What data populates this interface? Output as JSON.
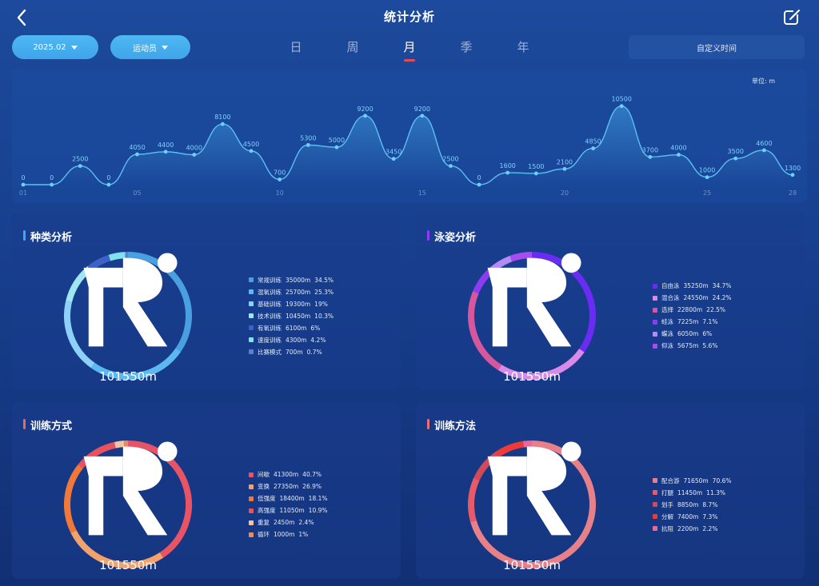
{
  "header": {
    "title": "统计分析"
  },
  "filters": {
    "date_label": "2025.02",
    "athlete_label": "运动员",
    "custom_time": "自定义时间"
  },
  "tabs": [
    {
      "label": "日",
      "active": false
    },
    {
      "label": "周",
      "active": false
    },
    {
      "label": "月",
      "active": true
    },
    {
      "label": "季",
      "active": false
    },
    {
      "label": "年",
      "active": false
    }
  ],
  "chart_data": [
    {
      "type": "line",
      "unit_label": "单位: m",
      "x": [
        1,
        2,
        3,
        4,
        5,
        6,
        7,
        8,
        9,
        10,
        11,
        12,
        13,
        14,
        15,
        16,
        17,
        18,
        19,
        20,
        21,
        22,
        23,
        24,
        25,
        26,
        27,
        28
      ],
      "x_tick_labels": [
        "01",
        "05",
        "10",
        "15",
        "20",
        "25",
        "28"
      ],
      "x_tick_values": [
        1,
        5,
        10,
        15,
        20,
        25,
        28
      ],
      "values": [
        0,
        0,
        2500,
        0,
        4050,
        4400,
        4000,
        8100,
        4500,
        700,
        5300,
        5000,
        9200,
        3450,
        9200,
        2500,
        0,
        1600,
        1500,
        2100,
        4850,
        10500,
        3700,
        4000,
        1000,
        3500,
        4600,
        1300
      ],
      "ylim": [
        0,
        11000
      ],
      "colors": {
        "line": "#5cc0f5",
        "point": "#6fd0ff",
        "label": "#7fd2ff"
      }
    },
    {
      "type": "pie",
      "title": "种类分析",
      "total": "101550m",
      "accent": "#3fa6f0",
      "slices": [
        {
          "name": "常规训练",
          "value": "35000m",
          "percent": "34.5%",
          "share": 34.5,
          "color": "#4a9fe0"
        },
        {
          "name": "混氧训练",
          "value": "25700m",
          "percent": "25.3%",
          "share": 25.3,
          "color": "#5cb8f0"
        },
        {
          "name": "基础训练",
          "value": "19300m",
          "percent": "19%",
          "share": 19,
          "color": "#8dd0fa"
        },
        {
          "name": "技术训练",
          "value": "10450m",
          "percent": "10.3%",
          "share": 10.3,
          "color": "#9fe6f2"
        },
        {
          "name": "有氧训练",
          "value": "6100m",
          "percent": "6%",
          "share": 6,
          "color": "#3c62c8"
        },
        {
          "name": "速度训练",
          "value": "4300m",
          "percent": "4.2%",
          "share": 4.2,
          "color": "#7fe3ee"
        },
        {
          "name": "比赛模式",
          "value": "700m",
          "percent": "0.7%",
          "share": 0.7,
          "color": "#5a7fd8"
        }
      ]
    },
    {
      "type": "pie",
      "title": "泳姿分析",
      "total": "101550m",
      "accent": "#8a3cff",
      "slices": [
        {
          "name": "自由泳",
          "value": "35250m",
          "percent": "34.7%",
          "share": 34.7,
          "color": "#6a2cf2"
        },
        {
          "name": "混合泳",
          "value": "24550m",
          "percent": "24.2%",
          "share": 24.2,
          "color": "#d98ae8"
        },
        {
          "name": "选择",
          "value": "22800m",
          "percent": "22.5%",
          "share": 22.5,
          "color": "#d6579e"
        },
        {
          "name": "蛙泳",
          "value": "7225m",
          "percent": "7.1%",
          "share": 7.1,
          "color": "#8f3cf0"
        },
        {
          "name": "蝶泳",
          "value": "6050m",
          "percent": "6%",
          "share": 6,
          "color": "#b48bf5"
        },
        {
          "name": "仰泳",
          "value": "5675m",
          "percent": "5.6%",
          "share": 5.6,
          "color": "#a64cf0"
        }
      ]
    },
    {
      "type": "pie",
      "title": "训练方式",
      "total": "101550m",
      "accent": "#e86a5a",
      "slices": [
        {
          "name": "间歇",
          "value": "41300m",
          "percent": "40.7%",
          "share": 40.7,
          "color": "#e85466"
        },
        {
          "name": "变换",
          "value": "27350m",
          "percent": "26.9%",
          "share": 26.9,
          "color": "#f2a26a"
        },
        {
          "name": "低强度",
          "value": "18400m",
          "percent": "18.1%",
          "share": 18.1,
          "color": "#f0783a"
        },
        {
          "name": "高强度",
          "value": "11050m",
          "percent": "10.9%",
          "share": 10.9,
          "color": "#e8525e"
        },
        {
          "name": "重复",
          "value": "2450m",
          "percent": "2.4%",
          "share": 2.4,
          "color": "#f5c2a6"
        },
        {
          "name": "循环",
          "value": "1000m",
          "percent": "1%",
          "share": 1,
          "color": "#f08a5a"
        }
      ]
    },
    {
      "type": "pie",
      "title": "训练方法",
      "total": "101550m",
      "accent": "#e8707a",
      "slices": [
        {
          "name": "配合游",
          "value": "71650m",
          "percent": "70.6%",
          "share": 70.6,
          "color": "#e8808a"
        },
        {
          "name": "打腿",
          "value": "11450m",
          "percent": "11.3%",
          "share": 11.3,
          "color": "#e85a6a"
        },
        {
          "name": "划手",
          "value": "8850m",
          "percent": "8.7%",
          "share": 8.7,
          "color": "#d24a5a"
        },
        {
          "name": "分解",
          "value": "7400m",
          "percent": "7.3%",
          "share": 7.3,
          "color": "#f03a3a"
        },
        {
          "name": "抗阻",
          "value": "2200m",
          "percent": "2.2%",
          "share": 2.2,
          "color": "#e86a9a"
        }
      ]
    }
  ]
}
